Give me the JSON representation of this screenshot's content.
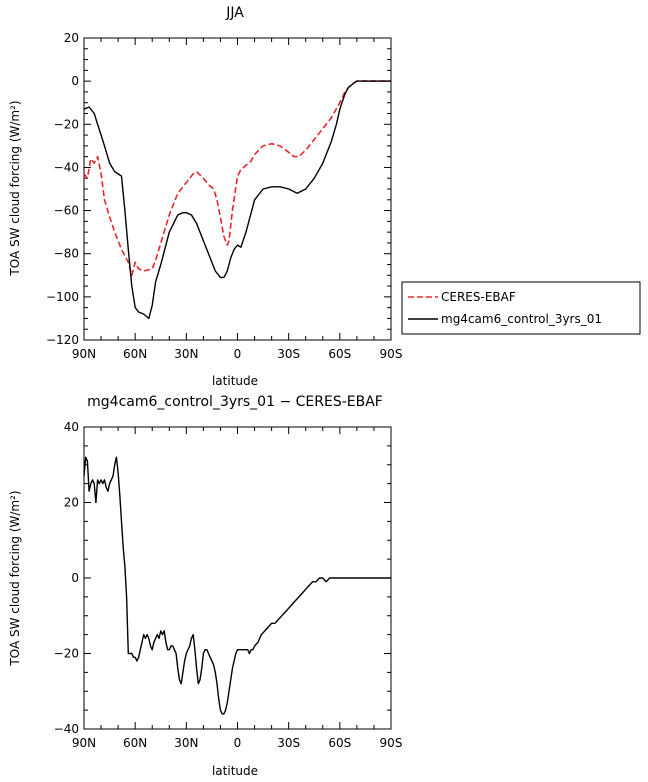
{
  "chart_data": [
    {
      "type": "line",
      "title": "JJA",
      "xlabel": "latitude",
      "ylabel": "TOA SW cloud forcing (W/m²)",
      "xlim": [
        90,
        -90
      ],
      "ylim": [
        -120,
        20
      ],
      "xticks": [
        {
          "value": 90,
          "label": "90N"
        },
        {
          "value": 60,
          "label": "60N"
        },
        {
          "value": 30,
          "label": "30N"
        },
        {
          "value": 0,
          "label": "0"
        },
        {
          "value": -30,
          "label": "30S"
        },
        {
          "value": -60,
          "label": "60S"
        },
        {
          "value": -90,
          "label": "90S"
        }
      ],
      "yticks": [
        20,
        0,
        -20,
        -40,
        -60,
        -80,
        -100,
        -120
      ],
      "legend_placement": "right",
      "series": [
        {
          "name": "CERES-EBAF",
          "color": "#e8262c",
          "dash": "dashed",
          "x": [
            90,
            88,
            86,
            84,
            82,
            80,
            78,
            75,
            72,
            68,
            64,
            62,
            60,
            58,
            55,
            50,
            48,
            45,
            40,
            35,
            30,
            26,
            24,
            20,
            17,
            14,
            12,
            10,
            8,
            6,
            5,
            3,
            0,
            -2,
            -5,
            -8,
            -10,
            -15,
            -20,
            -25,
            -30,
            -33,
            -36,
            -40,
            -45,
            -50,
            -55,
            -60,
            -63,
            -65,
            -68,
            -70,
            -73,
            -75,
            -80,
            -85,
            -90
          ],
          "y": [
            -43,
            -45,
            -36,
            -38,
            -35,
            -43,
            -55,
            -63,
            -70,
            -78,
            -84,
            -90,
            -84,
            -87,
            -88,
            -87,
            -83,
            -75,
            -62,
            -52,
            -47,
            -43,
            -42,
            -45,
            -48,
            -50,
            -55,
            -63,
            -72,
            -76,
            -74,
            -60,
            -44,
            -41,
            -39,
            -37,
            -34,
            -30,
            -29,
            -30,
            -33,
            -35,
            -35,
            -32,
            -27,
            -22,
            -17,
            -10,
            -5,
            -3,
            -1,
            0,
            0,
            0,
            0,
            0,
            0
          ]
        },
        {
          "name": "mg4cam6_control_3yrs_01",
          "color": "#000000",
          "dash": "solid",
          "x": [
            90,
            87,
            84,
            82,
            80,
            78,
            75,
            72,
            70,
            68,
            66,
            64,
            62,
            60,
            58,
            55,
            52,
            50,
            48,
            45,
            40,
            35,
            32,
            30,
            27,
            24,
            20,
            16,
            13,
            10,
            8,
            6,
            4,
            2,
            0,
            -2,
            -5,
            -10,
            -15,
            -20,
            -25,
            -30,
            -35,
            -40,
            -45,
            -50,
            -55,
            -58,
            -60,
            -63,
            -65,
            -68,
            -70,
            -73,
            -75,
            -80,
            -85,
            -90
          ],
          "y": [
            -13,
            -12,
            -15,
            -20,
            -25,
            -30,
            -38,
            -42,
            -43,
            -44,
            -60,
            -78,
            -95,
            -105,
            -107,
            -108,
            -110,
            -104,
            -93,
            -85,
            -70,
            -62,
            -61,
            -61,
            -62,
            -66,
            -74,
            -82,
            -88,
            -91,
            -91,
            -88,
            -82,
            -78,
            -76,
            -77,
            -70,
            -55,
            -50,
            -49,
            -49,
            -50,
            -52,
            -50,
            -45,
            -38,
            -28,
            -20,
            -13,
            -6,
            -3,
            -1,
            0,
            0,
            0,
            0,
            0,
            0
          ]
        }
      ]
    },
    {
      "type": "line",
      "title": "mg4cam6_control_3yrs_01 − CERES-EBAF",
      "xlabel": "latitude",
      "ylabel": "TOA SW cloud forcing (W/m²)",
      "xlim": [
        90,
        -90
      ],
      "ylim": [
        -40,
        40
      ],
      "xticks": [
        {
          "value": 90,
          "label": "90N"
        },
        {
          "value": 60,
          "label": "60N"
        },
        {
          "value": 30,
          "label": "30N"
        },
        {
          "value": 0,
          "label": "0"
        },
        {
          "value": -30,
          "label": "30S"
        },
        {
          "value": -60,
          "label": "60S"
        },
        {
          "value": -90,
          "label": "90S"
        }
      ],
      "yticks": [
        40,
        20,
        0,
        -20,
        -40
      ],
      "series": [
        {
          "color": "#000000",
          "dash": "solid",
          "x": [
            90,
            89,
            88,
            87,
            86,
            85,
            84,
            83,
            82,
            81,
            80,
            79,
            78,
            77,
            76,
            75,
            74,
            73,
            72,
            71,
            70,
            69,
            68,
            67,
            66,
            65,
            64,
            63,
            62,
            61,
            60,
            59,
            58,
            57,
            56,
            55,
            54,
            53,
            52,
            51,
            50,
            49,
            48,
            47,
            46,
            45,
            44,
            43,
            42,
            41,
            40,
            39,
            38,
            37,
            36,
            35,
            34,
            33,
            32,
            31,
            30,
            29,
            28,
            27,
            26,
            25,
            24,
            23,
            22,
            21,
            20,
            19,
            18,
            17,
            16,
            15,
            14,
            13,
            12,
            11,
            10,
            9,
            8,
            7,
            6,
            5,
            4,
            3,
            2,
            1,
            0,
            -1,
            -2,
            -3,
            -4,
            -5,
            -6,
            -7,
            -8,
            -9,
            -10,
            -12,
            -14,
            -16,
            -18,
            -20,
            -22,
            -24,
            -26,
            -28,
            -30,
            -32,
            -34,
            -36,
            -38,
            -40,
            -42,
            -44,
            -46,
            -48,
            -50,
            -52,
            -54,
            -56,
            -58,
            -60,
            -62,
            -64,
            -66,
            -68,
            -70,
            -72,
            -74,
            -76,
            -78,
            -80,
            -82,
            -84,
            -86,
            -88,
            -90
          ],
          "y": [
            27,
            32,
            31,
            23,
            25,
            26,
            25,
            20,
            26,
            25,
            26,
            25,
            26,
            24,
            23,
            25,
            26,
            27,
            30,
            32,
            28,
            22,
            15,
            8,
            3,
            -5,
            -20,
            -20,
            -20,
            -21,
            -21,
            -22,
            -21,
            -19,
            -17,
            -15,
            -16,
            -15,
            -16,
            -18,
            -19,
            -17,
            -16,
            -15,
            -16,
            -14,
            -15,
            -14,
            -17,
            -19,
            -19,
            -18,
            -18,
            -19,
            -20,
            -24,
            -27,
            -28,
            -25,
            -22,
            -20,
            -19,
            -18,
            -16,
            -15,
            -19,
            -24,
            -28,
            -27,
            -24,
            -20,
            -19,
            -19,
            -20,
            -21,
            -22,
            -23,
            -25,
            -28,
            -32,
            -35,
            -36,
            -36,
            -35,
            -33,
            -30,
            -27,
            -24,
            -22,
            -20,
            -19,
            -19,
            -19,
            -19,
            -19,
            -19,
            -19,
            -20,
            -19,
            -19,
            -18,
            -17,
            -15,
            -14,
            -13,
            -12,
            -12,
            -11,
            -10,
            -9,
            -8,
            -7,
            -6,
            -5,
            -4,
            -3,
            -2,
            -1,
            -1,
            0,
            0,
            -1,
            0,
            0,
            0,
            0,
            0,
            0,
            0,
            0,
            0,
            0,
            0,
            0,
            0,
            0,
            0,
            0,
            0,
            0,
            0
          ]
        }
      ]
    }
  ]
}
